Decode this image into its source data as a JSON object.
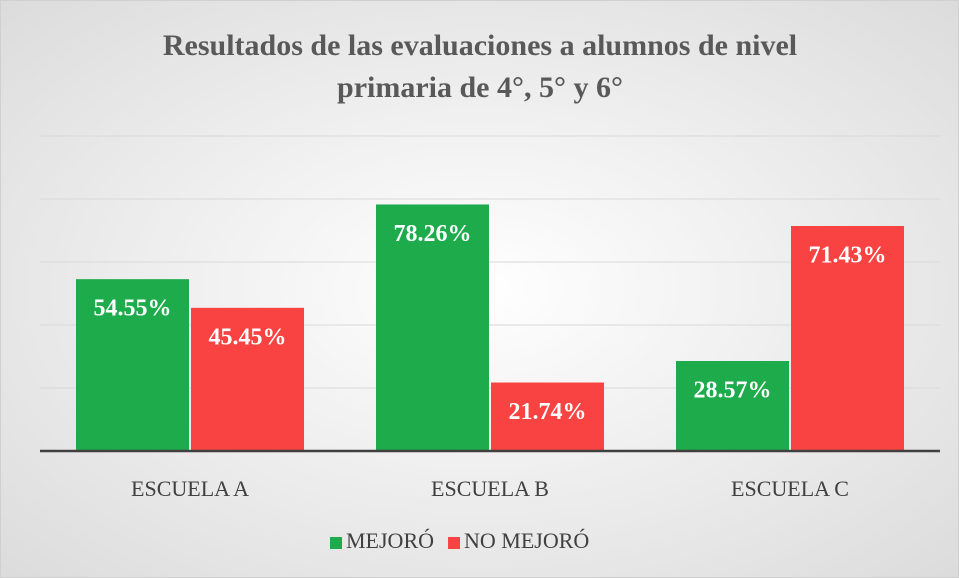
{
  "chart_data": {
    "type": "bar",
    "title": [
      "Resultados de las evaluaciones a alumnos de nivel",
      "primaria de 4°, 5° y 6°"
    ],
    "categories": [
      "ESCUELA A",
      "ESCUELA B",
      "ESCUELA C"
    ],
    "series": [
      {
        "name": "MEJORÓ",
        "color": "#1dab4b",
        "values": [
          54.55,
          78.26,
          28.57
        ],
        "value_labels": [
          "54.55%",
          "78.26%",
          "28.57%"
        ]
      },
      {
        "name": "NO MEJORÓ",
        "color": "#f94343",
        "values": [
          45.45,
          21.74,
          71.43
        ],
        "value_labels": [
          "45.45%",
          "21.74%",
          "71.43%"
        ]
      }
    ],
    "ylim": [
      0,
      100
    ],
    "yticks": [
      0,
      20,
      40,
      60,
      80,
      100
    ],
    "grid": true,
    "legend": "bottom"
  }
}
